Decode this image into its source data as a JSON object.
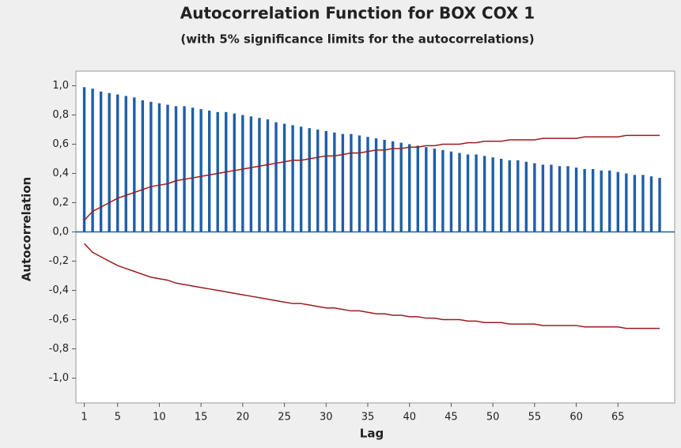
{
  "chart_data": {
    "type": "acf",
    "title": "Autocorrelation Function for BOX COX 1",
    "subtitle": "(with 5% significance limits for the autocorrelations)",
    "x_label": "Lag",
    "y_label": "Autocorrelation",
    "x": [
      1,
      2,
      3,
      4,
      5,
      6,
      7,
      8,
      9,
      10,
      11,
      12,
      13,
      14,
      15,
      16,
      17,
      18,
      19,
      20,
      21,
      22,
      23,
      24,
      25,
      26,
      27,
      28,
      29,
      30,
      31,
      32,
      33,
      34,
      35,
      36,
      37,
      38,
      39,
      40,
      41,
      42,
      43,
      44,
      45,
      46,
      47,
      48,
      49,
      50,
      51,
      52,
      53,
      54,
      55,
      56,
      57,
      58,
      59,
      60,
      61,
      62,
      63,
      64,
      65,
      66,
      67,
      68,
      69,
      70
    ],
    "values": [
      0.99,
      0.98,
      0.96,
      0.95,
      0.94,
      0.93,
      0.92,
      0.9,
      0.89,
      0.88,
      0.87,
      0.86,
      0.86,
      0.85,
      0.84,
      0.83,
      0.82,
      0.82,
      0.81,
      0.8,
      0.79,
      0.78,
      0.77,
      0.75,
      0.74,
      0.73,
      0.72,
      0.71,
      0.7,
      0.69,
      0.68,
      0.67,
      0.67,
      0.66,
      0.65,
      0.64,
      0.63,
      0.62,
      0.61,
      0.6,
      0.59,
      0.58,
      0.57,
      0.56,
      0.55,
      0.54,
      0.53,
      0.53,
      0.52,
      0.51,
      0.5,
      0.49,
      0.49,
      0.48,
      0.47,
      0.46,
      0.46,
      0.45,
      0.45,
      0.44,
      0.43,
      0.43,
      0.42,
      0.42,
      0.41,
      0.4,
      0.39,
      0.39,
      0.38,
      0.37
    ],
    "color": "#1f5fa8",
    "limits": [
      {
        "color": "#9b1c1c",
        "values": [
          0.08,
          0.14,
          0.17,
          0.2,
          0.23,
          0.25,
          0.27,
          0.29,
          0.31,
          0.32,
          0.33,
          0.35,
          0.36,
          0.37,
          0.38,
          0.39,
          0.4,
          0.41,
          0.42,
          0.43,
          0.44,
          0.45,
          0.46,
          0.47,
          0.48,
          0.49,
          0.49,
          0.5,
          0.51,
          0.52,
          0.52,
          0.53,
          0.54,
          0.54,
          0.55,
          0.56,
          0.56,
          0.57,
          0.57,
          0.58,
          0.58,
          0.59,
          0.59,
          0.6,
          0.6,
          0.6,
          0.61,
          0.61,
          0.62,
          0.62,
          0.62,
          0.63,
          0.63,
          0.63,
          0.63,
          0.64,
          0.64,
          0.64,
          0.64,
          0.64,
          0.65,
          0.65,
          0.65,
          0.65,
          0.65,
          0.66,
          0.66,
          0.66,
          0.66,
          0.66
        ]
      },
      {
        "color": "#9b1c1c",
        "values": [
          -0.08,
          -0.14,
          -0.17,
          -0.2,
          -0.23,
          -0.25,
          -0.27,
          -0.29,
          -0.31,
          -0.32,
          -0.33,
          -0.35,
          -0.36,
          -0.37,
          -0.38,
          -0.39,
          -0.4,
          -0.41,
          -0.42,
          -0.43,
          -0.44,
          -0.45,
          -0.46,
          -0.47,
          -0.48,
          -0.49,
          -0.49,
          -0.5,
          -0.51,
          -0.52,
          -0.52,
          -0.53,
          -0.54,
          -0.54,
          -0.55,
          -0.56,
          -0.56,
          -0.57,
          -0.57,
          -0.58,
          -0.58,
          -0.59,
          -0.59,
          -0.6,
          -0.6,
          -0.6,
          -0.61,
          -0.61,
          -0.62,
          -0.62,
          -0.62,
          -0.63,
          -0.63,
          -0.63,
          -0.63,
          -0.64,
          -0.64,
          -0.64,
          -0.64,
          -0.64,
          -0.65,
          -0.65,
          -0.65,
          -0.65,
          -0.65,
          -0.66,
          -0.66,
          -0.66,
          -0.66,
          -0.66
        ]
      }
    ],
    "xlim": [
      0,
      71.8
    ],
    "xticks": [
      1,
      5,
      10,
      15,
      20,
      25,
      30,
      35,
      40,
      45,
      50,
      55,
      60,
      65
    ],
    "ylim": [
      -1.17,
      1.1
    ],
    "yticks": [
      {
        "value": -1.0,
        "label": "-1,0"
      },
      {
        "value": -0.8,
        "label": "-0,8"
      },
      {
        "value": -0.6,
        "label": "-0,6"
      },
      {
        "value": -0.4,
        "label": "-0,4"
      },
      {
        "value": -0.2,
        "label": "-0,2"
      },
      {
        "value": 0.0,
        "label": "0,0"
      },
      {
        "value": 0.2,
        "label": "0,2"
      },
      {
        "value": 0.4,
        "label": "0,4"
      },
      {
        "value": 0.6,
        "label": "0,6"
      },
      {
        "value": 0.8,
        "label": "0,8"
      },
      {
        "value": 1.0,
        "label": "1,0"
      }
    ]
  }
}
